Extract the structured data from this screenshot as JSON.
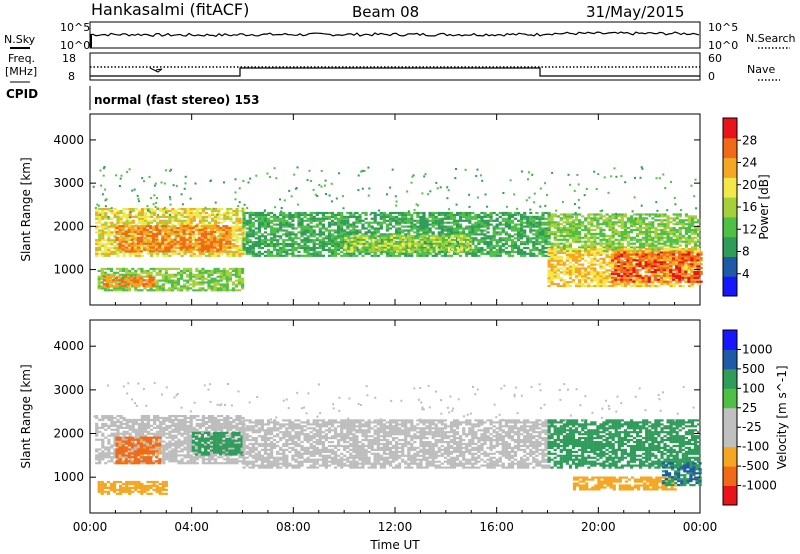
{
  "header": {
    "station": "Hankasalmi (fitACF)",
    "beam": "Beam 08",
    "date": "31/May/2015"
  },
  "top_panels": {
    "nsky_label": "N.Sky",
    "nsearch_label": "N.Search",
    "count_ticks_left": [
      "10^5",
      "10^0"
    ],
    "count_ticks_right": [
      "10^5",
      "10^0"
    ],
    "freq_label": "Freq.",
    "freq_unit": "[MHz]",
    "freq_ticks": [
      "18",
      "8"
    ],
    "nave_ticks": [
      "60",
      "0"
    ],
    "nave_label": "Nave",
    "cpid_label": "CPID",
    "cpid_text": "normal (fast stereo) 153"
  },
  "colors": {
    "power": [
      "#1616ff",
      "#1f5aa8",
      "#2f9c5a",
      "#4fbf45",
      "#a6d03a",
      "#f2e84a",
      "#f5a623",
      "#f06a17",
      "#e8141a"
    ],
    "velocity": [
      "#e8141a",
      "#f06a17",
      "#f5a623",
      "#c0c0c0",
      "#c0c0c0",
      "#4fbf45",
      "#2f9c5a",
      "#1f5aa8",
      "#1616ff"
    ]
  },
  "chart_data": [
    {
      "type": "heatmap",
      "title": "",
      "xlabel": "",
      "ylabel": "Slant Range [km]",
      "xlim": [
        0,
        24
      ],
      "ylim": [
        180,
        4600
      ],
      "y_ticks": [
        "4000",
        "3000",
        "2000",
        "1000"
      ],
      "colorbar_label": "Power [dB]",
      "colorbar_ticks": [
        "28",
        "24",
        "20",
        "16",
        "12",
        "8",
        "4"
      ],
      "colorbar_range": [
        0,
        32
      ],
      "features": [
        {
          "t": [
            0.2,
            6.0
          ],
          "range": [
            1300,
            2400
          ],
          "level": 20
        },
        {
          "t": [
            1.0,
            5.5
          ],
          "range": [
            1400,
            2000
          ],
          "level": 26
        },
        {
          "t": [
            0.3,
            6.0
          ],
          "range": [
            500,
            1000
          ],
          "level": 14
        },
        {
          "t": [
            0.5,
            2.5
          ],
          "range": [
            600,
            850
          ],
          "level": 26
        },
        {
          "t": [
            6.0,
            18.0
          ],
          "range": [
            1300,
            2300
          ],
          "level": 10
        },
        {
          "t": [
            10.0,
            15.0
          ],
          "range": [
            1400,
            1800
          ],
          "level": 16
        },
        {
          "t": [
            18.0,
            24.0
          ],
          "range": [
            1400,
            2300
          ],
          "level": 14
        },
        {
          "t": [
            18.0,
            24.0
          ],
          "range": [
            600,
            1500
          ],
          "level": 22
        },
        {
          "t": [
            20.5,
            24.0
          ],
          "range": [
            700,
            1400
          ],
          "level": 28
        }
      ]
    },
    {
      "type": "heatmap",
      "title": "",
      "xlabel": "Time UT",
      "ylabel": "Slant Range [km]",
      "xlim": [
        0,
        24
      ],
      "ylim": [
        180,
        4600
      ],
      "x_ticks": [
        "00:00",
        "04:00",
        "08:00",
        "12:00",
        "16:00",
        "20:00",
        "00:00"
      ],
      "y_ticks": [
        "4000",
        "3000",
        "2000",
        "1000"
      ],
      "colorbar_label": "Velocity [m s^-1]",
      "colorbar_ticks": [
        "1000",
        "500",
        "100",
        "25",
        "-25",
        "-100",
        "-500",
        "-1000"
      ],
      "features": [
        {
          "t": [
            0.2,
            6.0
          ],
          "range": [
            1300,
            2400
          ],
          "level": "ground-scatter"
        },
        {
          "t": [
            1.0,
            2.8
          ],
          "range": [
            1300,
            1900
          ],
          "level": -400
        },
        {
          "t": [
            4.0,
            6.0
          ],
          "range": [
            1500,
            2000
          ],
          "level": 200
        },
        {
          "t": [
            0.3,
            3.0
          ],
          "range": [
            600,
            900
          ],
          "level": -150
        },
        {
          "t": [
            6.0,
            18.0
          ],
          "range": [
            1200,
            2300
          ],
          "level": "ground-scatter"
        },
        {
          "t": [
            18.0,
            24.0
          ],
          "range": [
            1200,
            2300
          ],
          "level": 150
        },
        {
          "t": [
            19.0,
            23.0
          ],
          "range": [
            700,
            1000
          ],
          "level": -200
        },
        {
          "t": [
            22.5,
            24.0
          ],
          "range": [
            800,
            1300
          ],
          "level": 300
        }
      ]
    }
  ]
}
